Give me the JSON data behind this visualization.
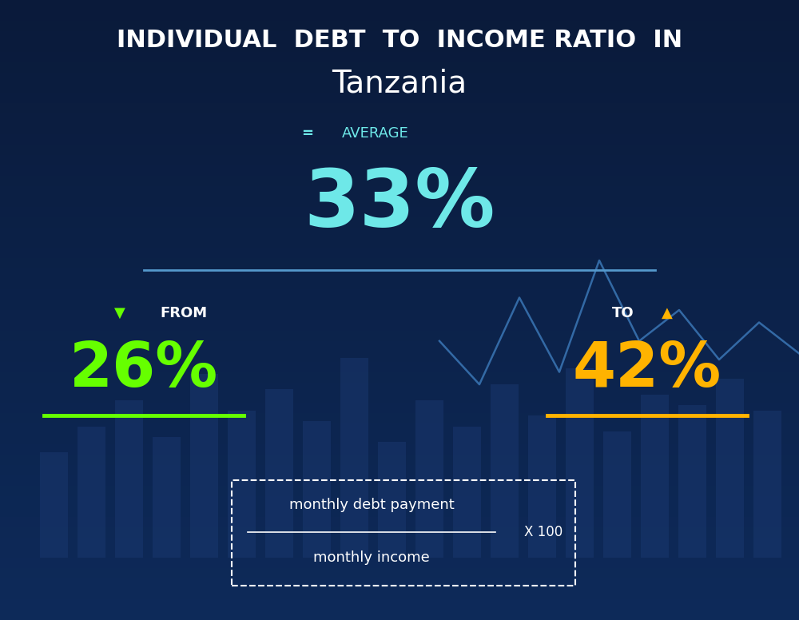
{
  "title_line1": "INDIVIDUAL  DEBT  TO  INCOME RATIO  IN",
  "title_line2": "Tanzania",
  "avg_label": "AVERAGE",
  "avg_value": "33%",
  "from_label": "FROM",
  "from_value": "26%",
  "to_label": "TO",
  "to_value": "42%",
  "formula_numerator": "monthly debt payment",
  "formula_denominator": "monthly income",
  "formula_multiplier": "X 100",
  "bg_color_top": "#0a1a3a",
  "bg_color_bottom": "#0d2550",
  "avg_color": "#6ee8e8",
  "from_color": "#66ff00",
  "to_color": "#ffb300",
  "text_white": "#ffffff",
  "text_cyan_label": "#a0d8d8",
  "divider_color": "#5599cc",
  "green_underline": "#66ff00",
  "gold_underline": "#ffb300",
  "formula_box_color": "#ffffff",
  "chart_bar_color": "#1a3a6a",
  "chart_dot_color": "#2255aa"
}
